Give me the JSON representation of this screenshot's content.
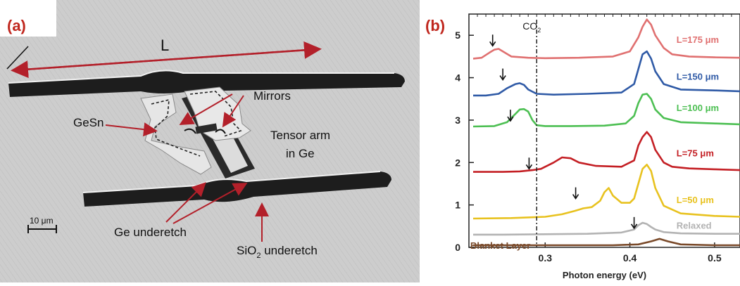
{
  "panel_a": {
    "label": "(a)",
    "annotations": {
      "length": "L",
      "mirrors": "Mirrors",
      "gesn": "GeSn",
      "tensor_arm_line1": "Tensor arm",
      "tensor_arm_line2": "in Ge",
      "scale_bar": "10 μm",
      "ge_underetch": "Ge underetch",
      "sio2_underetch_prefix": "SiO",
      "sio2_underetch_sub": "2",
      "sio2_underetch_suffix": " underetch"
    },
    "colors": {
      "arrow": "#b3202a",
      "substrate": "#cfcfcf",
      "trench": "#1d1d1d",
      "membrane": "#e4e4e4"
    }
  },
  "panel_b": {
    "label": "(b)",
    "co2_prefix": "CO",
    "co2_sub": "2"
  },
  "chart_data": {
    "type": "line",
    "xlabel": "Photon energy (eV)",
    "ylabel": "",
    "xlim": [
      0.21,
      0.53
    ],
    "ylim": [
      0,
      5.5
    ],
    "xticks": [
      0.3,
      0.4,
      0.5
    ],
    "xtick_labels": [
      "0.3",
      "0.4",
      "0.5"
    ],
    "yticks": [
      0,
      1,
      2,
      3,
      4,
      5
    ],
    "ytick_labels": [
      "0",
      "1",
      "2",
      "3",
      "4",
      "5"
    ],
    "vline": {
      "x": 0.29,
      "style": "dash-dot",
      "label": "CO2"
    },
    "grid": false,
    "series": [
      {
        "name": "L=175 μm",
        "color": "#e07070",
        "baseline": 4.45,
        "lambda_peak_x": 0.245,
        "lambda_peak_h": 0.22,
        "main_peak_x": 0.42,
        "main_peak_h": 0.9,
        "arrow_x": 0.238,
        "arrow_y": 4.75,
        "x": [
          0.215,
          0.225,
          0.235,
          0.24,
          0.245,
          0.25,
          0.26,
          0.28,
          0.3,
          0.34,
          0.38,
          0.4,
          0.41,
          0.415,
          0.42,
          0.425,
          0.43,
          0.44,
          0.45,
          0.47,
          0.5,
          0.53
        ],
        "y": [
          4.45,
          4.47,
          4.6,
          4.66,
          4.68,
          4.62,
          4.5,
          4.47,
          4.46,
          4.47,
          4.5,
          4.62,
          4.95,
          5.2,
          5.37,
          5.25,
          5.0,
          4.7,
          4.55,
          4.5,
          4.48,
          4.47
        ]
      },
      {
        "name": "L=150 μm",
        "color": "#2f5aa6",
        "baseline": 3.58,
        "main_peak_x": 0.418,
        "main_peak_h": 1.0,
        "arrow_x": 0.25,
        "arrow_y": 3.95,
        "x": [
          0.215,
          0.23,
          0.245,
          0.255,
          0.265,
          0.27,
          0.275,
          0.28,
          0.29,
          0.31,
          0.35,
          0.39,
          0.405,
          0.41,
          0.415,
          0.42,
          0.425,
          0.43,
          0.44,
          0.46,
          0.5,
          0.53
        ],
        "y": [
          3.58,
          3.58,
          3.62,
          3.75,
          3.85,
          3.87,
          3.83,
          3.72,
          3.62,
          3.6,
          3.62,
          3.65,
          3.85,
          4.2,
          4.55,
          4.62,
          4.45,
          4.15,
          3.85,
          3.72,
          3.7,
          3.68
        ]
      },
      {
        "name": "L=100 μm",
        "color": "#4cbf52",
        "baseline": 2.85,
        "main_peak_x": 0.418,
        "main_peak_h": 1.0,
        "arrow_x": 0.259,
        "arrow_y": 2.98,
        "x": [
          0.215,
          0.24,
          0.255,
          0.265,
          0.27,
          0.275,
          0.28,
          0.285,
          0.29,
          0.3,
          0.33,
          0.37,
          0.395,
          0.405,
          0.41,
          0.415,
          0.42,
          0.425,
          0.43,
          0.44,
          0.46,
          0.5,
          0.53
        ],
        "y": [
          2.85,
          2.86,
          2.95,
          3.15,
          3.25,
          3.26,
          3.2,
          3.0,
          2.88,
          2.86,
          2.86,
          2.87,
          2.92,
          3.1,
          3.4,
          3.6,
          3.62,
          3.5,
          3.25,
          3.05,
          2.95,
          2.92,
          2.9
        ]
      },
      {
        "name": "L=75 μm",
        "color": "#c41f24",
        "baseline": 1.78,
        "main_peak_x": 0.42,
        "main_peak_h": 0.95,
        "arrow_x": 0.281,
        "arrow_y": 1.85,
        "x": [
          0.215,
          0.25,
          0.27,
          0.285,
          0.295,
          0.31,
          0.32,
          0.33,
          0.34,
          0.36,
          0.39,
          0.405,
          0.41,
          0.415,
          0.42,
          0.425,
          0.43,
          0.44,
          0.45,
          0.47,
          0.5,
          0.53
        ],
        "y": [
          1.78,
          1.78,
          1.79,
          1.82,
          1.85,
          2.0,
          2.12,
          2.1,
          2.0,
          1.92,
          1.9,
          2.05,
          2.4,
          2.6,
          2.72,
          2.6,
          2.3,
          2.0,
          1.9,
          1.86,
          1.84,
          1.82
        ]
      },
      {
        "name": "L=50 μm",
        "color": "#e8c21f",
        "baseline": 0.68,
        "main_peak_x": 0.42,
        "main_peak_h": 1.25,
        "arrow_x": 0.336,
        "arrow_y": 1.15,
        "x": [
          0.215,
          0.26,
          0.3,
          0.32,
          0.335,
          0.345,
          0.355,
          0.365,
          0.37,
          0.375,
          0.38,
          0.39,
          0.4,
          0.405,
          0.41,
          0.415,
          0.42,
          0.425,
          0.43,
          0.44,
          0.46,
          0.5,
          0.53
        ],
        "y": [
          0.68,
          0.69,
          0.72,
          0.78,
          0.86,
          0.92,
          0.95,
          1.1,
          1.3,
          1.4,
          1.22,
          1.05,
          1.05,
          1.15,
          1.5,
          1.85,
          1.95,
          1.8,
          1.4,
          0.98,
          0.8,
          0.74,
          0.72
        ]
      },
      {
        "name": "Relaxed",
        "color": "#b3b3b3",
        "baseline": 0.3,
        "main_peak_x": 0.418,
        "main_peak_h": 0.28,
        "arrow_x": 0.405,
        "arrow_y": 0.45,
        "x": [
          0.215,
          0.25,
          0.3,
          0.35,
          0.39,
          0.405,
          0.41,
          0.415,
          0.42,
          0.425,
          0.43,
          0.44,
          0.46,
          0.5,
          0.53
        ],
        "y": [
          0.3,
          0.3,
          0.31,
          0.32,
          0.35,
          0.42,
          0.52,
          0.58,
          0.55,
          0.48,
          0.42,
          0.36,
          0.33,
          0.32,
          0.32
        ]
      },
      {
        "name": "Blanket Layer",
        "color": "#7a4a2a",
        "baseline": 0.05,
        "main_peak_x": 0.435,
        "main_peak_h": 0.15,
        "x": [
          0.215,
          0.3,
          0.38,
          0.41,
          0.425,
          0.435,
          0.445,
          0.46,
          0.5,
          0.53
        ],
        "y": [
          0.05,
          0.05,
          0.05,
          0.07,
          0.14,
          0.2,
          0.14,
          0.07,
          0.05,
          0.05
        ]
      }
    ]
  }
}
